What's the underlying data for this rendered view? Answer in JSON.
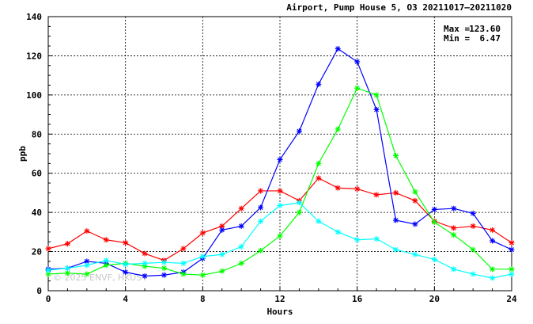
{
  "chart_data": {
    "type": "line",
    "title": "Airport, Pump House 5, O3 20211017–20211020",
    "xlabel": "Hours",
    "ylabel": "ppb",
    "xlim": [
      0,
      24
    ],
    "ylim": [
      0,
      140
    ],
    "xticks": [
      "0",
      "4",
      "8",
      "12",
      "16",
      "20",
      "24"
    ],
    "yticks": [
      "0",
      "20",
      "40",
      "60",
      "80",
      "100",
      "120",
      "140"
    ],
    "grid": true,
    "stats": {
      "max_label": "Max =",
      "max_value": "123.60",
      "min_label": "Min =",
      "min_value": "6.47"
    },
    "watermark": "© 2025 ENVF, HKUST",
    "x": [
      0,
      1,
      2,
      3,
      4,
      5,
      6,
      7,
      8,
      9,
      10,
      11,
      12,
      13,
      14,
      15,
      16,
      17,
      18,
      19,
      20,
      21,
      22,
      23,
      24
    ],
    "series": [
      {
        "color": "#ff0000",
        "values": [
          21.5,
          24,
          30.5,
          26,
          24.5,
          19,
          15.5,
          21.5,
          29.5,
          33,
          42,
          51,
          51,
          46,
          57.5,
          52.5,
          52,
          49,
          50,
          46,
          35.5,
          32,
          33,
          31,
          24.5
        ]
      },
      {
        "color": "#0000ff",
        "values": [
          11,
          11.5,
          15,
          14,
          9.5,
          7.5,
          8,
          9.5,
          16.5,
          31,
          33,
          42.5,
          67,
          81.5,
          105.5,
          123.6,
          117,
          92.5,
          36,
          34,
          41.5,
          42,
          39.5,
          25.5,
          21
        ]
      },
      {
        "color": "#00ff00",
        "values": [
          8.5,
          9,
          8.5,
          13,
          14,
          12.5,
          11.5,
          8.5,
          8,
          10,
          14,
          20.5,
          28,
          40,
          65,
          82.5,
          103.5,
          100,
          69,
          50.5,
          35,
          28.5,
          21,
          11,
          11
        ]
      },
      {
        "color": "#00ffff",
        "values": [
          10.5,
          11.5,
          13,
          15.5,
          13.5,
          14,
          14.5,
          14,
          17.5,
          18.5,
          22.5,
          35.5,
          43.5,
          45,
          35.5,
          30,
          26,
          26.5,
          21,
          18.5,
          16,
          11,
          8.5,
          6.47,
          8.5
        ]
      }
    ]
  }
}
